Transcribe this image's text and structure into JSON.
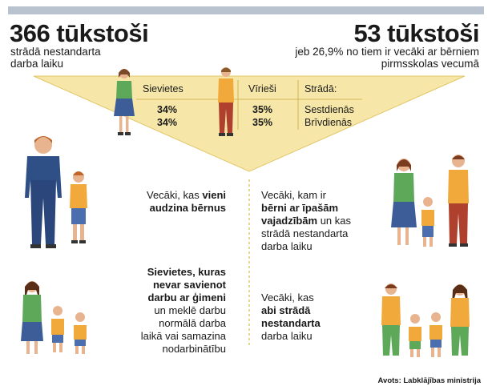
{
  "colors": {
    "header_bar": "#b9c2cf",
    "funnel_fill": "#f6e7a8",
    "funnel_line": "#d9b94a",
    "text": "#1a1a1a"
  },
  "left_stat": {
    "number": "366 tūkstoši",
    "line1": "strādā nestandarta",
    "line2": "darba laiku"
  },
  "right_stat": {
    "number": "53 tūkstoši",
    "line1": "jeb 26,9% no tiem ir vecāki ar bērniem",
    "line2": "pirmsskolas vecumā"
  },
  "table": {
    "women_header": "Sievietes",
    "men_header": "Vīrieši",
    "works_header": "Strādā:",
    "women_values": [
      "34%",
      "34%"
    ],
    "men_values": [
      "35%",
      "35%"
    ],
    "days": [
      "Sestdienās",
      "Brīvdienās"
    ]
  },
  "blocks": {
    "single_parents": {
      "pre": "Vecāki, kas ",
      "bold1": "vieni",
      "bold2": "audzina bērnus"
    },
    "special_needs": {
      "line1": "Vecāki, kam ir",
      "bold1": "bērni ar īpašām",
      "bold2": "vajadzībām",
      "rest2": " un kas",
      "line4": "strādā nestandarta",
      "line5": "darba laiku"
    },
    "women_block": {
      "bold1": "Sievietes, kuras",
      "bold2": "nevar savienot",
      "bold3": "darbu ar ģimeni",
      "line4": "un meklē darbu",
      "line5": "normālā darba",
      "line6": "laikā vai samazina",
      "line7": "nodarbinātību"
    },
    "both_work": {
      "line1": "Vecāki, kas",
      "bold1": "abi strādā",
      "bold2": "nestandarta",
      "line4": "darba laiku"
    }
  },
  "source": "Avots: Labklājības ministrija",
  "icons": [
    "woman-figure-icon",
    "man-figure-icon",
    "single-father-with-child-icon",
    "family-with-children-icon",
    "single-mother-with-children-icon",
    "parents-with-children-icon"
  ]
}
